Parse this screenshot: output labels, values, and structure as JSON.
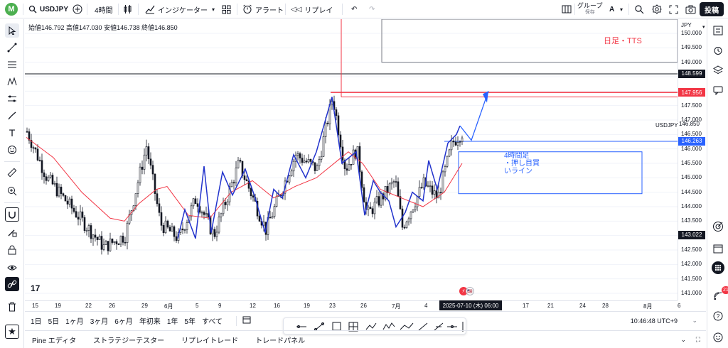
{
  "topbar": {
    "avatar_letter": "M",
    "symbol": "USDJPY",
    "interval": "4時間",
    "indicators": "インジケーター",
    "alert": "アラート",
    "replay": "リプレイ",
    "group_label": "グループ",
    "group_sub": "保存",
    "group_letter": "A",
    "post": "投稿"
  },
  "ohlc": {
    "text": "始値146.792 高値147.030 安値146.738 終値146.850"
  },
  "annotations": {
    "daily_tts": "日足・TTS",
    "box_line1": "4時間足",
    "box_line2": "・押し目買",
    "box_line3": "いライン"
  },
  "price_axis": {
    "currency": "JPY",
    "ticks": [
      "150.000",
      "149.500",
      "149.000",
      "148.500",
      "148.000",
      "147.500",
      "147.000",
      "146.500",
      "146.000",
      "145.500",
      "145.000",
      "144.500",
      "144.000",
      "143.500",
      "143.000",
      "142.500",
      "142.000",
      "141.500",
      "141.000"
    ],
    "symbol_tag": "USDJPY",
    "last_price": "146.850",
    "labels": [
      {
        "value": "148.599",
        "color": "#131722"
      },
      {
        "value": "147.956",
        "color": "#f23645"
      },
      {
        "value": "146.263",
        "color": "#2962ff"
      },
      {
        "value": "143.022",
        "color": "#131722"
      }
    ]
  },
  "time_axis": {
    "ticks": [
      "15",
      "19",
      "22",
      "26",
      "29",
      "6月",
      "5",
      "9",
      "12",
      "16",
      "19",
      "23",
      "26",
      "7月",
      "4",
      "17",
      "21",
      "24",
      "28",
      "8月",
      "6"
    ],
    "cursor_label": "2025-07-10 (木)  06:00"
  },
  "ranges": [
    "1日",
    "5日",
    "1ヶ月",
    "3ヶ月",
    "6ヶ月",
    "年初来",
    "1年",
    "5年",
    "すべて"
  ],
  "clock": "10:46:48 UTC+9",
  "panels": [
    "Pine エディタ",
    "ストラテジーテスター",
    "リプレイトレード",
    "トレードパネル"
  ],
  "notification_count": "21",
  "colors": {
    "up": "#131722",
    "ma": "#f23645",
    "wave": "#2233cc",
    "accent": "#2962ff"
  }
}
